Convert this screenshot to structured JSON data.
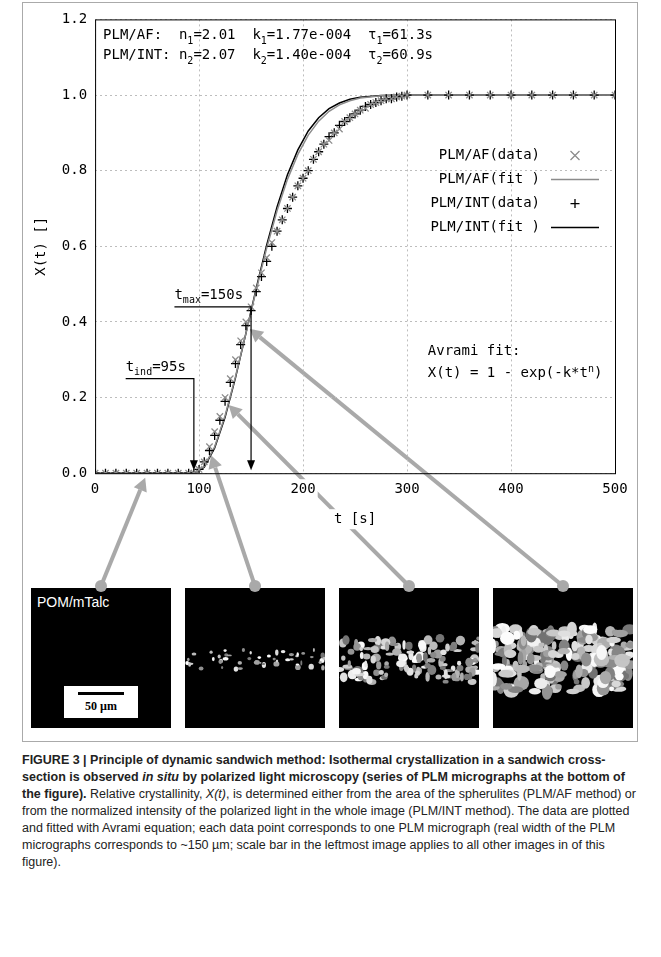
{
  "chart_data": {
    "type": "line",
    "x_label": "t [s]",
    "y_label": "X(t) []",
    "xlim": [
      0,
      500
    ],
    "xticks": [
      0,
      100,
      200,
      300,
      400,
      500
    ],
    "ylim": [
      0,
      1.2
    ],
    "yticks": [
      {
        "value": 0,
        "label": "0.0"
      },
      0.2,
      0.4,
      0.6,
      0.8,
      {
        "value": 1,
        "label": "1.0"
      },
      1.2
    ],
    "grid": true,
    "legend": "right",
    "series": [
      {
        "name": "PLM/AF(data)",
        "type": "scatter",
        "color": "#8c8c8c",
        "marker": "x",
        "line_style": "none",
        "x": [
          0,
          10,
          20,
          30,
          40,
          50,
          60,
          70,
          80,
          90,
          95,
          100,
          105,
          110,
          115,
          120,
          125,
          130,
          135,
          140,
          145,
          150,
          155,
          160,
          165,
          170,
          175,
          180,
          185,
          190,
          195,
          200,
          205,
          210,
          215,
          220,
          225,
          230,
          235,
          240,
          245,
          250,
          255,
          260,
          265,
          270,
          275,
          280,
          285,
          290,
          295,
          300,
          320,
          340,
          360,
          380,
          400,
          420,
          440,
          460,
          480,
          500
        ],
        "values": [
          0,
          0,
          0,
          0,
          0,
          0,
          0,
          0,
          0,
          0,
          0.0,
          0.01,
          0.03,
          0.07,
          0.11,
          0.15,
          0.2,
          0.25,
          0.3,
          0.35,
          0.4,
          0.44,
          0.49,
          0.53,
          0.57,
          0.61,
          0.64,
          0.67,
          0.7,
          0.73,
          0.76,
          0.78,
          0.8,
          0.83,
          0.85,
          0.87,
          0.88,
          0.9,
          0.91,
          0.93,
          0.94,
          0.95,
          0.96,
          0.965,
          0.975,
          0.98,
          0.985,
          0.99,
          0.99,
          0.995,
          0.997,
          1.0,
          1.0,
          1.0,
          1.0,
          1.0,
          1.0,
          1.0,
          1.0,
          1.0,
          1.0,
          1.0
        ]
      },
      {
        "name": "PLM/AF(fit )",
        "type": "line",
        "color": "#8c8c8c",
        "marker": "none",
        "line_style": "solid",
        "x": [
          0,
          95,
          105,
          115,
          125,
          135,
          145,
          155,
          165,
          175,
          185,
          195,
          205,
          215,
          225,
          235,
          245,
          255,
          275,
          300,
          500
        ],
        "values": [
          0,
          0,
          0.018,
          0.07,
          0.152,
          0.255,
          0.369,
          0.485,
          0.595,
          0.694,
          0.777,
          0.843,
          0.894,
          0.931,
          0.957,
          0.974,
          0.985,
          0.992,
          0.998,
          1.0,
          1.0
        ]
      },
      {
        "name": "PLM/INT(data)",
        "type": "scatter",
        "color": "#000000",
        "marker": "plus",
        "line_style": "none",
        "x": [
          0,
          10,
          20,
          30,
          40,
          50,
          60,
          70,
          80,
          90,
          95,
          100,
          105,
          110,
          115,
          120,
          125,
          130,
          135,
          140,
          145,
          150,
          155,
          160,
          165,
          170,
          175,
          180,
          185,
          190,
          195,
          200,
          205,
          210,
          215,
          220,
          225,
          230,
          235,
          240,
          245,
          250,
          255,
          260,
          265,
          270,
          275,
          280,
          285,
          290,
          295,
          300,
          320,
          340,
          360,
          380,
          400,
          420,
          440,
          460,
          480,
          500
        ],
        "values": [
          0,
          0,
          0,
          0,
          0,
          0,
          0,
          0,
          0,
          0,
          0.0,
          0.01,
          0.03,
          0.06,
          0.1,
          0.14,
          0.19,
          0.24,
          0.29,
          0.34,
          0.39,
          0.43,
          0.48,
          0.52,
          0.56,
          0.6,
          0.64,
          0.67,
          0.7,
          0.73,
          0.76,
          0.78,
          0.8,
          0.83,
          0.85,
          0.87,
          0.89,
          0.9,
          0.92,
          0.93,
          0.94,
          0.95,
          0.96,
          0.97,
          0.975,
          0.98,
          0.985,
          0.99,
          0.99,
          0.995,
          0.997,
          1.0,
          1.0,
          1.0,
          1.0,
          1.0,
          1.0,
          1.0,
          1.0,
          1.0,
          1.0,
          1.0
        ]
      },
      {
        "name": "PLM/INT(fit )",
        "type": "line",
        "color": "#000000",
        "marker": "none",
        "line_style": "solid",
        "x": [
          0,
          95,
          105,
          115,
          125,
          135,
          145,
          155,
          165,
          175,
          185,
          195,
          205,
          215,
          225,
          235,
          245,
          255,
          275,
          300,
          500
        ],
        "values": [
          0,
          0,
          0.016,
          0.067,
          0.148,
          0.252,
          0.369,
          0.489,
          0.603,
          0.704,
          0.789,
          0.855,
          0.905,
          0.94,
          0.964,
          0.979,
          0.989,
          0.994,
          0.999,
          1.0,
          1.0
        ]
      }
    ],
    "fit_info": [
      [
        {
          "text": "PLM/AF:  n"
        },
        {
          "text": "1",
          "sub": true
        },
        {
          "text": "=2.01  k"
        },
        {
          "text": "1",
          "sub": true
        },
        {
          "text": "=1.77e-004  τ"
        },
        {
          "text": "1",
          "sub": true
        },
        {
          "text": "=61.3s"
        }
      ],
      [
        {
          "text": "PLM/INT: n"
        },
        {
          "text": "2",
          "sub": true
        },
        {
          "text": "=2.07  k"
        },
        {
          "text": "2",
          "sub": true
        },
        {
          "text": "=1.40e-004  τ"
        },
        {
          "text": "2",
          "sub": true
        },
        {
          "text": "=60.9s"
        }
      ]
    ],
    "annotations": [
      {
        "parts": [
          {
            "text": "t"
          },
          {
            "text": "ind",
            "sub": true
          },
          {
            "text": "=95s"
          }
        ],
        "x": 95,
        "y": 0.25
      },
      {
        "parts": [
          {
            "text": "t"
          },
          {
            "text": "max",
            "sub": true
          },
          {
            "text": "=150s"
          }
        ],
        "x": 150,
        "y": 0.44
      }
    ],
    "equation": {
      "title": "Avrami fit:",
      "parts": [
        {
          "text": "X(t) = 1 - exp(-k*t"
        },
        {
          "text": "n",
          "sup": true
        },
        {
          "text": ")"
        }
      ]
    }
  },
  "micrographs": [
    {
      "label": "POM/mTalc",
      "scale_bar": "50 µm",
      "points_to": {
        "t": 50,
        "X": 0
      }
    },
    {
      "points_to": {
        "t": 110,
        "X": 0.06
      }
    },
    {
      "points_to": {
        "t": 125,
        "X": 0.19
      }
    },
    {
      "points_to": {
        "t": 145,
        "X": 0.39
      }
    }
  ],
  "caption": {
    "label": "FIGURE 3 |",
    "title_parts": [
      {
        "text": "Principle of dynamic sandwich method: Isothermal crystallization in a sandwich cross-section is observed "
      },
      {
        "text": "in situ",
        "italic": true
      },
      {
        "text": " by polarized light microscopy (series of PLM micrographs at the bottom of the figure)."
      }
    ],
    "body_parts": [
      {
        "text": "Relative crystallinity, "
      },
      {
        "text": "X(t)",
        "italic": true
      },
      {
        "text": ", is determined either from the area of the spherulites (PLM/AF method) or from the normalized intensity of the polarized light in the whole image (PLM/INT method). The data are plotted and fitted with Avrami equation; each data point corresponds to one PLM micrograph (real width of the PLM micrographs corresponds to ~150 µm; scale bar in the leftmost image applies to all other images in of this figure)."
      }
    ]
  }
}
